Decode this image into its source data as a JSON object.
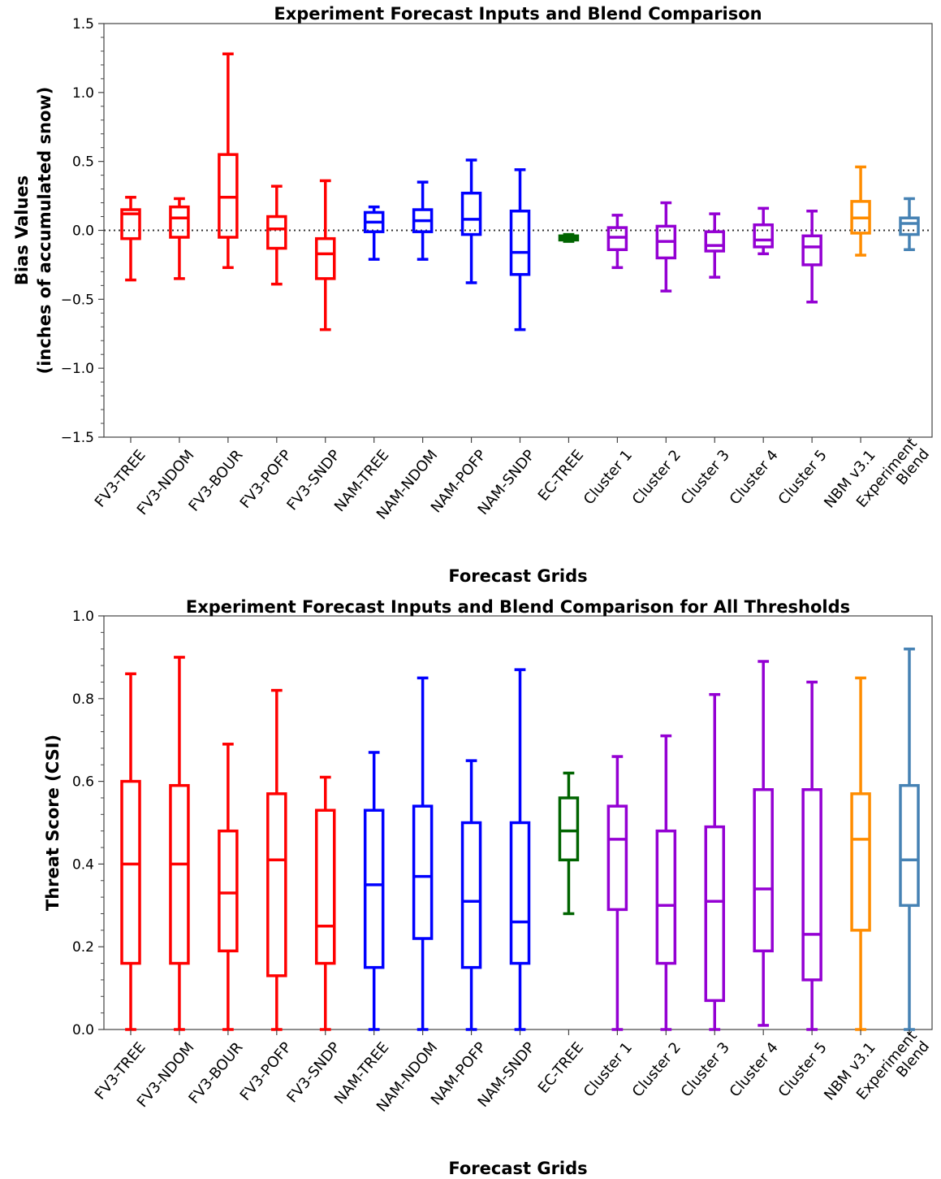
{
  "chart_data": [
    {
      "type": "box",
      "title": "Experiment Forecast Inputs and Blend Comparison",
      "xlabel": "Forecast Grids",
      "ylabel": [
        "Bias Values",
        "(inches of accumulated snow)"
      ],
      "ylim": [
        -1.5,
        1.5
      ],
      "yticks": [
        -1.5,
        -1.0,
        -0.5,
        0.0,
        0.5,
        1.0,
        1.5
      ],
      "ytick_labels": [
        "−1.5",
        "−1.0",
        "−0.5",
        "0.0",
        "0.5",
        "1.0",
        "1.5"
      ],
      "reference_line": 0.0,
      "categories": [
        [
          "FV3-TREE"
        ],
        [
          "FV3-NDOM"
        ],
        [
          "FV3-BOUR"
        ],
        [
          "FV3-POFP"
        ],
        [
          "FV3-SNDP"
        ],
        [
          "NAM-TREE"
        ],
        [
          "NAM-NDOM"
        ],
        [
          "NAM-POFP"
        ],
        [
          "NAM-SNDP"
        ],
        [
          "EC-TREE"
        ],
        [
          "Cluster 1"
        ],
        [
          "Cluster 2"
        ],
        [
          "Cluster 3"
        ],
        [
          "Cluster 4"
        ],
        [
          "Cluster 5"
        ],
        [
          "NBM v3.1"
        ],
        [
          "Experiment",
          "Blend"
        ]
      ],
      "colors": [
        "#ff0000",
        "#ff0000",
        "#ff0000",
        "#ff0000",
        "#ff0000",
        "#0000ff",
        "#0000ff",
        "#0000ff",
        "#0000ff",
        "#006400",
        "#9400d3",
        "#9400d3",
        "#9400d3",
        "#9400d3",
        "#9400d3",
        "#ff8c00",
        "#4682b4"
      ],
      "boxes": [
        {
          "whislo": -0.36,
          "q1": -0.06,
          "med": 0.12,
          "q3": 0.15,
          "whishi": 0.24
        },
        {
          "whislo": -0.35,
          "q1": -0.05,
          "med": 0.09,
          "q3": 0.17,
          "whishi": 0.23
        },
        {
          "whislo": -0.27,
          "q1": -0.05,
          "med": 0.24,
          "q3": 0.55,
          "whishi": 1.28
        },
        {
          "whislo": -0.39,
          "q1": -0.13,
          "med": 0.01,
          "q3": 0.1,
          "whishi": 0.32
        },
        {
          "whislo": -0.72,
          "q1": -0.35,
          "med": -0.17,
          "q3": -0.06,
          "whishi": 0.36
        },
        {
          "whislo": -0.21,
          "q1": -0.01,
          "med": 0.06,
          "q3": 0.13,
          "whishi": 0.17
        },
        {
          "whislo": -0.21,
          "q1": -0.01,
          "med": 0.07,
          "q3": 0.15,
          "whishi": 0.35
        },
        {
          "whislo": -0.38,
          "q1": -0.03,
          "med": 0.08,
          "q3": 0.27,
          "whishi": 0.51
        },
        {
          "whislo": -0.72,
          "q1": -0.32,
          "med": -0.16,
          "q3": 0.14,
          "whishi": 0.44
        },
        {
          "whislo": -0.08,
          "q1": -0.07,
          "med": -0.06,
          "q3": -0.04,
          "whishi": -0.03
        },
        {
          "whislo": -0.27,
          "q1": -0.14,
          "med": -0.05,
          "q3": 0.02,
          "whishi": 0.11
        },
        {
          "whislo": -0.44,
          "q1": -0.2,
          "med": -0.08,
          "q3": 0.03,
          "whishi": 0.2
        },
        {
          "whislo": -0.34,
          "q1": -0.15,
          "med": -0.11,
          "q3": -0.01,
          "whishi": 0.12
        },
        {
          "whislo": -0.17,
          "q1": -0.12,
          "med": -0.07,
          "q3": 0.04,
          "whishi": 0.16
        },
        {
          "whislo": -0.52,
          "q1": -0.25,
          "med": -0.12,
          "q3": -0.04,
          "whishi": 0.14
        },
        {
          "whislo": -0.18,
          "q1": -0.02,
          "med": 0.09,
          "q3": 0.21,
          "whishi": 0.46
        },
        {
          "whislo": -0.14,
          "q1": -0.03,
          "med": 0.05,
          "q3": 0.09,
          "whishi": 0.23
        }
      ]
    },
    {
      "type": "box",
      "title": "Experiment Forecast Inputs and Blend Comparison for All Thresholds",
      "xlabel": "Forecast Grids",
      "ylabel": [
        "Threat Score (CSI)"
      ],
      "ylim": [
        0.0,
        1.0
      ],
      "yticks": [
        0.0,
        0.2,
        0.4,
        0.6,
        0.8,
        1.0
      ],
      "ytick_labels": [
        "0.0",
        "0.2",
        "0.4",
        "0.6",
        "0.8",
        "1.0"
      ],
      "categories": [
        [
          "FV3-TREE"
        ],
        [
          "FV3-NDOM"
        ],
        [
          "FV3-BOUR"
        ],
        [
          "FV3-POFP"
        ],
        [
          "FV3-SNDP"
        ],
        [
          "NAM-TREE"
        ],
        [
          "NAM-NDOM"
        ],
        [
          "NAM-POFP"
        ],
        [
          "NAM-SNDP"
        ],
        [
          "EC-TREE"
        ],
        [
          "Cluster 1"
        ],
        [
          "Cluster 2"
        ],
        [
          "Cluster 3"
        ],
        [
          "Cluster 4"
        ],
        [
          "Cluster 5"
        ],
        [
          "NBM v3.1"
        ],
        [
          "Experiment",
          "Blend"
        ]
      ],
      "colors": [
        "#ff0000",
        "#ff0000",
        "#ff0000",
        "#ff0000",
        "#ff0000",
        "#0000ff",
        "#0000ff",
        "#0000ff",
        "#0000ff",
        "#006400",
        "#9400d3",
        "#9400d3",
        "#9400d3",
        "#9400d3",
        "#9400d3",
        "#ff8c00",
        "#4682b4"
      ],
      "boxes": [
        {
          "whislo": 0.0,
          "q1": 0.16,
          "med": 0.4,
          "q3": 0.6,
          "whishi": 0.86
        },
        {
          "whislo": 0.0,
          "q1": 0.16,
          "med": 0.4,
          "q3": 0.59,
          "whishi": 0.9
        },
        {
          "whislo": 0.0,
          "q1": 0.19,
          "med": 0.33,
          "q3": 0.48,
          "whishi": 0.69
        },
        {
          "whislo": 0.0,
          "q1": 0.13,
          "med": 0.41,
          "q3": 0.57,
          "whishi": 0.82
        },
        {
          "whislo": 0.0,
          "q1": 0.16,
          "med": 0.25,
          "q3": 0.53,
          "whishi": 0.61
        },
        {
          "whislo": 0.0,
          "q1": 0.15,
          "med": 0.35,
          "q3": 0.53,
          "whishi": 0.67
        },
        {
          "whislo": 0.0,
          "q1": 0.22,
          "med": 0.37,
          "q3": 0.54,
          "whishi": 0.85
        },
        {
          "whislo": 0.0,
          "q1": 0.15,
          "med": 0.31,
          "q3": 0.5,
          "whishi": 0.65
        },
        {
          "whislo": 0.0,
          "q1": 0.16,
          "med": 0.26,
          "q3": 0.5,
          "whishi": 0.87
        },
        {
          "whislo": 0.28,
          "q1": 0.41,
          "med": 0.48,
          "q3": 0.56,
          "whishi": 0.62
        },
        {
          "whislo": 0.0,
          "q1": 0.29,
          "med": 0.46,
          "q3": 0.54,
          "whishi": 0.66
        },
        {
          "whislo": 0.0,
          "q1": 0.16,
          "med": 0.3,
          "q3": 0.48,
          "whishi": 0.71
        },
        {
          "whislo": 0.0,
          "q1": 0.07,
          "med": 0.31,
          "q3": 0.49,
          "whishi": 0.81
        },
        {
          "whislo": 0.01,
          "q1": 0.19,
          "med": 0.34,
          "q3": 0.58,
          "whishi": 0.89
        },
        {
          "whislo": 0.0,
          "q1": 0.12,
          "med": 0.23,
          "q3": 0.58,
          "whishi": 0.84
        },
        {
          "whislo": 0.0,
          "q1": 0.24,
          "med": 0.46,
          "q3": 0.57,
          "whishi": 0.85
        },
        {
          "whislo": 0.0,
          "q1": 0.3,
          "med": 0.41,
          "q3": 0.59,
          "whishi": 0.92
        }
      ]
    }
  ]
}
